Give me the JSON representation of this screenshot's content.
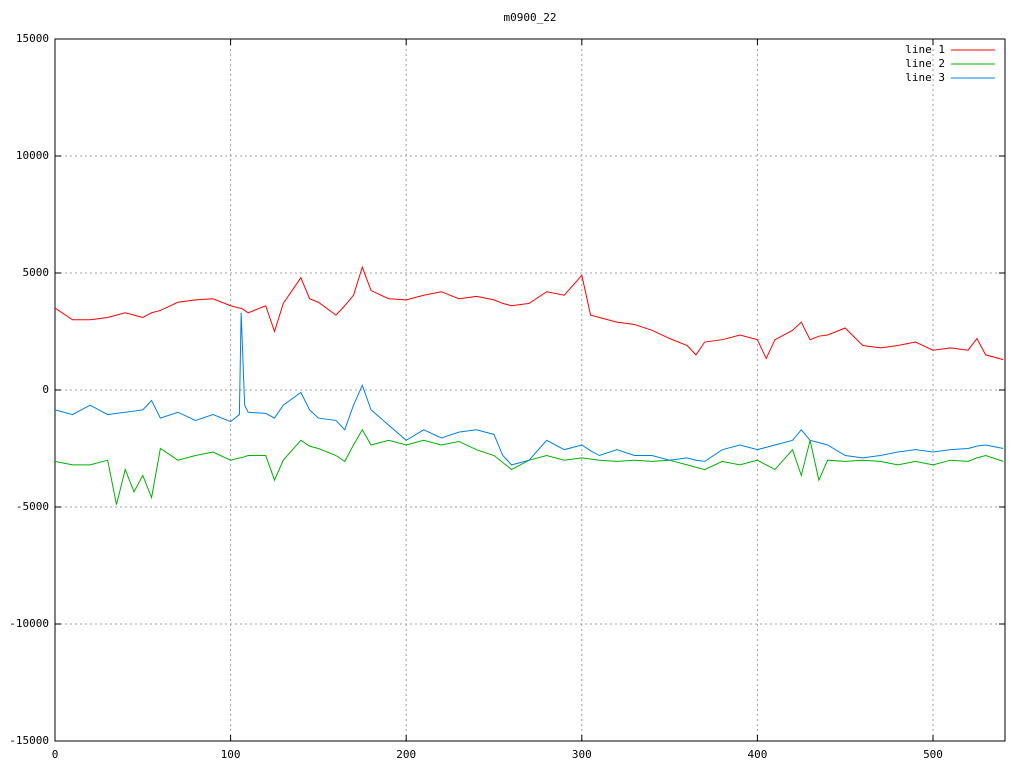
{
  "chart_data": {
    "type": "line",
    "title": "m0900_22",
    "x": [
      0,
      10,
      20,
      30,
      35,
      40,
      45,
      50,
      55,
      60,
      70,
      80,
      90,
      100,
      105,
      106,
      108,
      110,
      120,
      125,
      130,
      140,
      145,
      150,
      160,
      165,
      170,
      175,
      180,
      190,
      200,
      210,
      220,
      230,
      240,
      250,
      255,
      260,
      270,
      280,
      290,
      300,
      305,
      310,
      320,
      330,
      340,
      350,
      360,
      365,
      370,
      380,
      390,
      400,
      405,
      410,
      420,
      425,
      430,
      435,
      440,
      450,
      460,
      470,
      480,
      490,
      500,
      510,
      520,
      525,
      530,
      540
    ],
    "series": [
      {
        "name": "line 1",
        "color": "#ff0000",
        "values": [
          3500,
          3000,
          3000,
          3100,
          3200,
          3300,
          3200,
          3100,
          3300,
          3400,
          3750,
          3850,
          3900,
          3600,
          3500,
          3500,
          3400,
          3300,
          3600,
          2500,
          3700,
          4800,
          3900,
          3750,
          3200,
          3600,
          4050,
          5250,
          4250,
          3900,
          3850,
          4050,
          4200,
          3900,
          4000,
          3850,
          3700,
          3600,
          3700,
          4200,
          4050,
          4900,
          3200,
          3100,
          2900,
          2800,
          2550,
          2200,
          1900,
          1500,
          2050,
          2150,
          2350,
          2150,
          1350,
          2150,
          2550,
          2900,
          2150,
          2300,
          2350,
          2650,
          1900,
          1800,
          1900,
          2050,
          1700,
          1800,
          1700,
          2200,
          1500,
          1300
        ]
      },
      {
        "name": "line 2",
        "color": "#00b000",
        "values": [
          -3050,
          -3200,
          -3200,
          -3000,
          -4900,
          -3400,
          -4350,
          -3650,
          -4600,
          -2500,
          -3000,
          -2800,
          -2650,
          -3000,
          -2900,
          -2900,
          -2850,
          -2800,
          -2800,
          -3850,
          -3000,
          -2150,
          -2400,
          -2500,
          -2800,
          -3050,
          -2350,
          -1700,
          -2350,
          -2150,
          -2350,
          -2150,
          -2350,
          -2200,
          -2550,
          -2800,
          -3100,
          -3400,
          -3000,
          -2800,
          -3000,
          -2900,
          -2950,
          -3000,
          -3050,
          -3000,
          -3050,
          -3000,
          -3200,
          -3300,
          -3400,
          -3050,
          -3200,
          -3000,
          -3200,
          -3400,
          -2550,
          -3650,
          -2150,
          -3850,
          -3000,
          -3050,
          -3000,
          -3050,
          -3200,
          -3050,
          -3200,
          -3000,
          -3050,
          -2900,
          -2800,
          -3050
        ]
      },
      {
        "name": "line 3",
        "color": "#0080e0",
        "values": [
          -850,
          -1050,
          -650,
          -1050,
          -1000,
          -950,
          -900,
          -850,
          -450,
          -1200,
          -950,
          -1300,
          -1050,
          -1350,
          -1050,
          3300,
          -650,
          -950,
          -1000,
          -1200,
          -650,
          -100,
          -850,
          -1200,
          -1300,
          -1700,
          -650,
          200,
          -850,
          -1500,
          -2150,
          -1700,
          -2050,
          -1800,
          -1700,
          -1900,
          -2800,
          -3200,
          -3000,
          -2150,
          -2550,
          -2350,
          -2600,
          -2800,
          -2550,
          -2800,
          -2800,
          -3000,
          -2900,
          -3000,
          -3050,
          -2550,
          -2350,
          -2550,
          -2450,
          -2350,
          -2150,
          -1700,
          -2150,
          -2250,
          -2350,
          -2800,
          -2900,
          -2800,
          -2650,
          -2550,
          -2650,
          -2550,
          -2500,
          -2400,
          -2350,
          -2500
        ]
      }
    ],
    "xlim": [
      0,
      541
    ],
    "xticks": [
      0,
      100,
      200,
      300,
      400,
      500
    ],
    "ylim": [
      -15000,
      15000
    ],
    "yticks": [
      -15000,
      -10000,
      -5000,
      0,
      5000,
      10000,
      15000
    ],
    "grid": true,
    "legend": "top right"
  }
}
